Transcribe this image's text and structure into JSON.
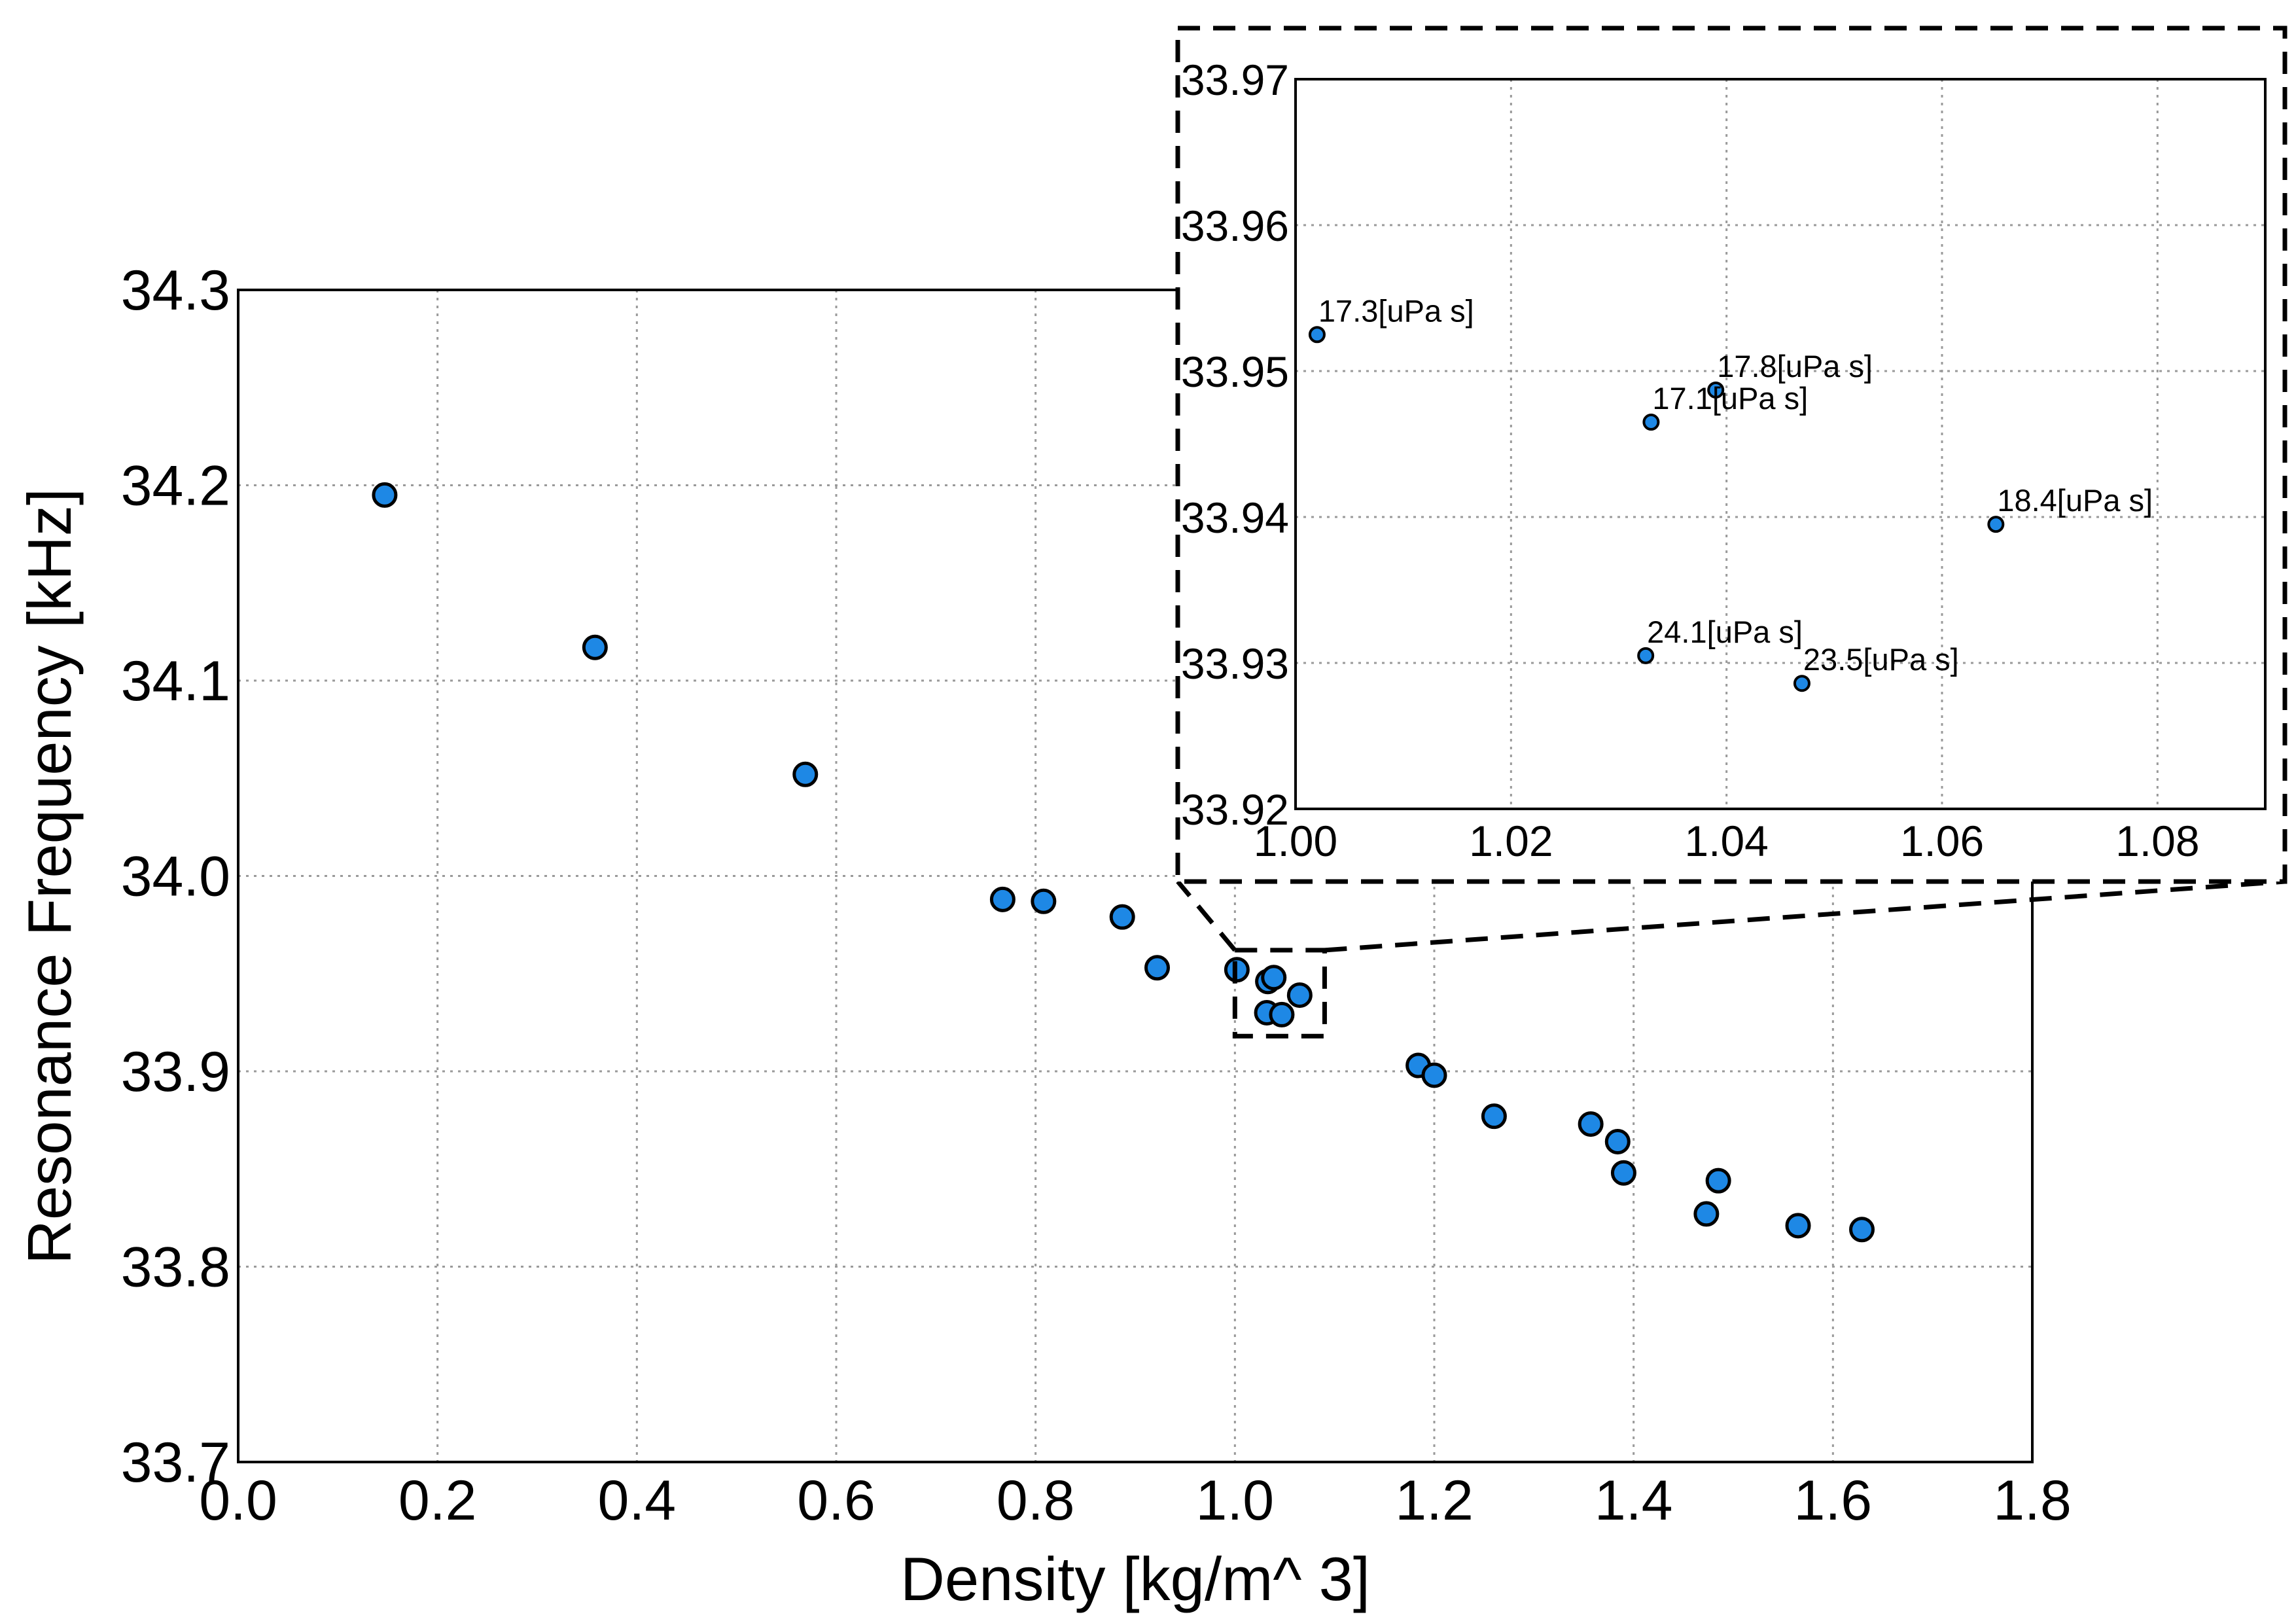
{
  "chart_data": [
    {
      "type": "scatter",
      "name": "main",
      "xlabel": "Density [kg/m^ 3]",
      "ylabel": "Resonance Frequency [kHz]",
      "xlim": [
        0.0,
        1.8
      ],
      "ylim": [
        33.7,
        34.3
      ],
      "grid": true,
      "xticks": [
        "0.0",
        "0.2",
        "0.4",
        "0.6",
        "0.8",
        "1.0",
        "1.2",
        "1.4",
        "1.6",
        "1.8"
      ],
      "yticks": [
        "33.7",
        "33.8",
        "33.9",
        "34.0",
        "34.1",
        "34.2",
        "34.3"
      ],
      "x": [
        0.147,
        0.358,
        0.569,
        0.767,
        0.808,
        0.887,
        0.922,
        1.002,
        1.032,
        1.033,
        1.039,
        1.047,
        1.065,
        1.184,
        1.2,
        1.26,
        1.357,
        1.384,
        1.39,
        1.473,
        1.485,
        1.565,
        1.629
      ],
      "y": [
        34.195,
        34.117,
        34.052,
        33.988,
        33.987,
        33.979,
        33.953,
        33.952,
        33.93,
        33.946,
        33.948,
        33.929,
        33.939,
        33.903,
        33.898,
        33.877,
        33.873,
        33.864,
        33.848,
        33.827,
        33.844,
        33.821,
        33.819
      ],
      "zoom_region": {
        "xlim": [
          1.0,
          1.09
        ],
        "ylim": [
          33.918,
          33.962
        ]
      }
    },
    {
      "type": "scatter",
      "name": "inset",
      "xlim": [
        1.0,
        1.09
      ],
      "ylim": [
        33.92,
        33.97
      ],
      "grid": true,
      "xticks": [
        "1.00",
        "1.02",
        "1.04",
        "1.06",
        "1.08"
      ],
      "yticks": [
        "33.92",
        "33.93",
        "33.94",
        "33.95",
        "33.96",
        "33.97"
      ],
      "points": [
        {
          "x": 1.002,
          "y": 33.9525,
          "label": "17.3[uPa s]"
        },
        {
          "x": 1.039,
          "y": 33.9487,
          "label": "17.8[uPa s]"
        },
        {
          "x": 1.033,
          "y": 33.9465,
          "label": "17.1[uPa s]"
        },
        {
          "x": 1.065,
          "y": 33.9395,
          "label": "18.4[uPa s]"
        },
        {
          "x": 1.0325,
          "y": 33.9305,
          "label": "24.1[uPa s]"
        },
        {
          "x": 1.047,
          "y": 33.9286,
          "label": "23.5[uPa s]"
        }
      ]
    }
  ]
}
